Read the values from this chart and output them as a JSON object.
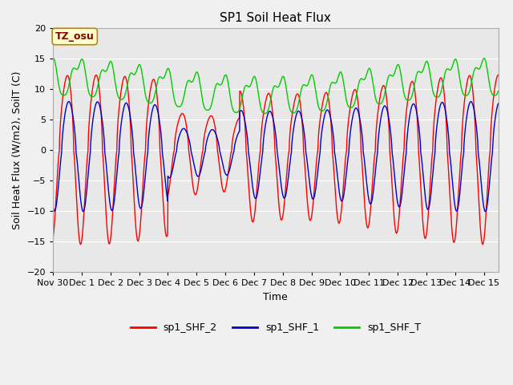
{
  "title": "SP1 Soil Heat Flux",
  "xlabel": "Time",
  "ylabel": "Soil Heat Flux (W/m2), SoilT (C)",
  "ylim": [
    -20,
    20
  ],
  "xlim": [
    0,
    15.5
  ],
  "tick_labels": [
    "Nov 30",
    "Dec 1",
    "Dec 2",
    "Dec 3",
    "Dec 4",
    "Dec 5",
    "Dec 6",
    "Dec 7",
    "Dec 8",
    "Dec 9",
    "Dec 10",
    "Dec 11",
    "Dec 12",
    "Dec 13",
    "Dec 14",
    "Dec 15"
  ],
  "yticks": [
    -20,
    -15,
    -10,
    -5,
    0,
    5,
    10,
    15,
    20
  ],
  "line_colors": [
    "#ff0000",
    "#0000cc",
    "#00cc00"
  ],
  "line_labels": [
    "sp1_SHF_2",
    "sp1_SHF_1",
    "sp1_SHF_T"
  ],
  "fig_bg_color": "#f0f0f0",
  "plot_bg_color": "#e8e8e8",
  "grid_color": "#ffffff",
  "annotation_text": "TZ_osu",
  "annotation_fg": "#8b0000",
  "annotation_bg": "#ffffcc",
  "annotation_border": "#b8860b",
  "title_fontsize": 11,
  "label_fontsize": 9,
  "tick_fontsize": 8
}
